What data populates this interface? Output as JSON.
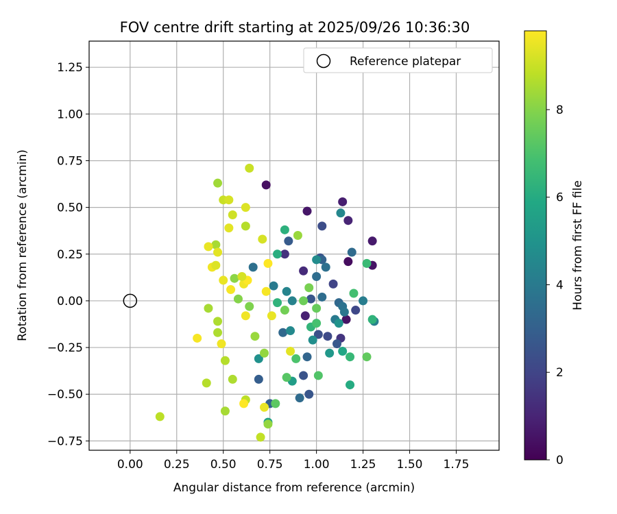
{
  "chart_data": {
    "type": "scatter",
    "title": "FOV centre drift starting at 2025/09/26 10:36:30",
    "xlabel": "Angular distance from reference (arcmin)",
    "ylabel": "Rotation from reference (arcmin)",
    "xlim": [
      -0.22,
      1.98
    ],
    "ylim": [
      -0.8,
      1.39
    ],
    "grid": true,
    "x_ticks": [
      "0.00",
      "0.25",
      "0.50",
      "0.75",
      "1.00",
      "1.25",
      "1.50",
      "1.75"
    ],
    "y_ticks": [
      "−0.75",
      "−0.50",
      "−0.25",
      "0.00",
      "0.25",
      "0.50",
      "0.75",
      "1.00",
      "1.25"
    ],
    "legend": {
      "position": "top-right",
      "entries": [
        "Reference platepar"
      ]
    },
    "reference": {
      "x": 0.0,
      "y": 0.0
    },
    "colorbar": {
      "label": "Hours from first FF file",
      "min": 0,
      "max": 9.8,
      "ticks": [
        "0",
        "2",
        "4",
        "6",
        "8"
      ],
      "colormap": "viridis"
    },
    "points": [
      {
        "x": 0.73,
        "y": 0.62,
        "h": 0.4
      },
      {
        "x": 0.95,
        "y": 0.48,
        "h": 0.6
      },
      {
        "x": 1.14,
        "y": 0.53,
        "h": 0.8
      },
      {
        "x": 1.17,
        "y": 0.43,
        "h": 1.0
      },
      {
        "x": 1.3,
        "y": 0.32,
        "h": 0.7
      },
      {
        "x": 1.3,
        "y": 0.19,
        "h": 0.5
      },
      {
        "x": 1.17,
        "y": 0.21,
        "h": 0.3
      },
      {
        "x": 1.16,
        "y": -0.1,
        "h": 0.5
      },
      {
        "x": 0.93,
        "y": 0.16,
        "h": 1.2
      },
      {
        "x": 0.94,
        "y": -0.08,
        "h": 0.9
      },
      {
        "x": 0.83,
        "y": 0.25,
        "h": 1.4
      },
      {
        "x": 1.13,
        "y": -0.2,
        "h": 1.5
      },
      {
        "x": 1.09,
        "y": 0.09,
        "h": 2.0
      },
      {
        "x": 1.03,
        "y": 0.4,
        "h": 2.3
      },
      {
        "x": 1.02,
        "y": 0.23,
        "h": 2.5
      },
      {
        "x": 0.97,
        "y": 0.01,
        "h": 2.6
      },
      {
        "x": 1.01,
        "y": -0.18,
        "h": 2.4
      },
      {
        "x": 1.06,
        "y": -0.19,
        "h": 2.2
      },
      {
        "x": 1.11,
        "y": -0.23,
        "h": 2.7
      },
      {
        "x": 0.85,
        "y": 0.32,
        "h": 2.8
      },
      {
        "x": 0.93,
        "y": -0.4,
        "h": 2.5
      },
      {
        "x": 0.96,
        "y": -0.5,
        "h": 2.6
      },
      {
        "x": 0.69,
        "y": -0.42,
        "h": 2.9
      },
      {
        "x": 0.75,
        "y": -0.55,
        "h": 3.0
      },
      {
        "x": 1.03,
        "y": 0.22,
        "h": 3.1
      },
      {
        "x": 1.21,
        "y": -0.05,
        "h": 2.1
      },
      {
        "x": 1.12,
        "y": -0.01,
        "h": 3.3
      },
      {
        "x": 1.19,
        "y": 0.26,
        "h": 3.4
      },
      {
        "x": 1.0,
        "y": 0.13,
        "h": 3.5
      },
      {
        "x": 1.03,
        "y": 0.02,
        "h": 3.5
      },
      {
        "x": 0.95,
        "y": -0.3,
        "h": 3.2
      },
      {
        "x": 0.91,
        "y": -0.52,
        "h": 3.4
      },
      {
        "x": 0.66,
        "y": 0.18,
        "h": 3.6
      },
      {
        "x": 1.05,
        "y": 0.18,
        "h": 3.6
      },
      {
        "x": 1.14,
        "y": -0.03,
        "h": 3.7
      },
      {
        "x": 1.15,
        "y": -0.06,
        "h": 3.8
      },
      {
        "x": 0.82,
        "y": -0.17,
        "h": 3.3
      },
      {
        "x": 1.1,
        "y": -0.1,
        "h": 4.0
      },
      {
        "x": 1.31,
        "y": -0.11,
        "h": 4.2
      },
      {
        "x": 1.25,
        "y": 0.0,
        "h": 4.1
      },
      {
        "x": 0.77,
        "y": 0.08,
        "h": 4.0
      },
      {
        "x": 0.87,
        "y": 0.0,
        "h": 4.3
      },
      {
        "x": 0.84,
        "y": 0.05,
        "h": 4.4
      },
      {
        "x": 1.13,
        "y": 0.47,
        "h": 4.5
      },
      {
        "x": 0.86,
        "y": -0.16,
        "h": 4.6
      },
      {
        "x": 0.98,
        "y": -0.21,
        "h": 4.8
      },
      {
        "x": 1.12,
        "y": -0.12,
        "h": 5.0
      },
      {
        "x": 1.0,
        "y": 0.22,
        "h": 4.7
      },
      {
        "x": 0.69,
        "y": -0.31,
        "h": 4.9
      },
      {
        "x": 1.07,
        "y": -0.28,
        "h": 5.2
      },
      {
        "x": 0.87,
        "y": -0.43,
        "h": 5.4
      },
      {
        "x": 0.74,
        "y": -0.65,
        "h": 5.6
      },
      {
        "x": 1.14,
        "y": -0.27,
        "h": 5.8
      },
      {
        "x": 1.18,
        "y": -0.45,
        "h": 6.0
      },
      {
        "x": 0.79,
        "y": 0.25,
        "h": 6.1
      },
      {
        "x": 0.83,
        "y": 0.38,
        "h": 6.2
      },
      {
        "x": 0.79,
        "y": -0.01,
        "h": 6.3
      },
      {
        "x": 0.97,
        "y": -0.14,
        "h": 6.4
      },
      {
        "x": 1.18,
        "y": -0.3,
        "h": 6.5
      },
      {
        "x": 1.27,
        "y": 0.2,
        "h": 6.6
      },
      {
        "x": 1.3,
        "y": -0.1,
        "h": 6.3
      },
      {
        "x": 1.2,
        "y": 0.04,
        "h": 6.8
      },
      {
        "x": 1.0,
        "y": -0.12,
        "h": 6.9
      },
      {
        "x": 0.89,
        "y": -0.31,
        "h": 7.0
      },
      {
        "x": 1.01,
        "y": -0.4,
        "h": 7.1
      },
      {
        "x": 0.84,
        "y": -0.41,
        "h": 7.2
      },
      {
        "x": 0.78,
        "y": -0.55,
        "h": 7.3
      },
      {
        "x": 1.27,
        "y": -0.3,
        "h": 7.4
      },
      {
        "x": 1.0,
        "y": -0.04,
        "h": 7.5
      },
      {
        "x": 0.93,
        "y": 0.0,
        "h": 7.6
      },
      {
        "x": 0.83,
        "y": -0.05,
        "h": 7.7
      },
      {
        "x": 0.96,
        "y": 0.07,
        "h": 7.8
      },
      {
        "x": 0.64,
        "y": -0.03,
        "h": 7.9
      },
      {
        "x": 0.58,
        "y": 0.01,
        "h": 8.0
      },
      {
        "x": 0.56,
        "y": 0.12,
        "h": 8.1
      },
      {
        "x": 0.74,
        "y": -0.66,
        "h": 8.2
      },
      {
        "x": 0.67,
        "y": -0.19,
        "h": 8.3
      },
      {
        "x": 0.72,
        "y": -0.28,
        "h": 8.2
      },
      {
        "x": 0.9,
        "y": 0.35,
        "h": 8.3
      },
      {
        "x": 0.47,
        "y": 0.63,
        "h": 8.4
      },
      {
        "x": 0.46,
        "y": 0.3,
        "h": 8.5
      },
      {
        "x": 0.42,
        "y": -0.04,
        "h": 8.5
      },
      {
        "x": 0.47,
        "y": -0.11,
        "h": 8.6
      },
      {
        "x": 0.47,
        "y": -0.17,
        "h": 8.6
      },
      {
        "x": 0.51,
        "y": -0.32,
        "h": 8.7
      },
      {
        "x": 0.41,
        "y": -0.44,
        "h": 8.7
      },
      {
        "x": 0.55,
        "y": -0.42,
        "h": 8.6
      },
      {
        "x": 0.62,
        "y": -0.53,
        "h": 8.8
      },
      {
        "x": 0.51,
        "y": -0.59,
        "h": 8.5
      },
      {
        "x": 0.7,
        "y": -0.73,
        "h": 8.9
      },
      {
        "x": 0.16,
        "y": -0.62,
        "h": 8.8
      },
      {
        "x": 0.62,
        "y": 0.4,
        "h": 8.7
      },
      {
        "x": 0.64,
        "y": 0.71,
        "h": 9.0
      },
      {
        "x": 0.5,
        "y": 0.54,
        "h": 9.0
      },
      {
        "x": 0.53,
        "y": 0.54,
        "h": 9.2
      },
      {
        "x": 0.55,
        "y": 0.46,
        "h": 9.1
      },
      {
        "x": 0.62,
        "y": 0.5,
        "h": 9.3
      },
      {
        "x": 0.53,
        "y": 0.39,
        "h": 9.4
      },
      {
        "x": 0.71,
        "y": 0.33,
        "h": 9.2
      },
      {
        "x": 0.42,
        "y": 0.29,
        "h": 9.5
      },
      {
        "x": 0.47,
        "y": 0.26,
        "h": 9.4
      },
      {
        "x": 0.44,
        "y": 0.18,
        "h": 9.6
      },
      {
        "x": 0.46,
        "y": 0.19,
        "h": 9.3
      },
      {
        "x": 0.5,
        "y": 0.11,
        "h": 9.5
      },
      {
        "x": 0.54,
        "y": 0.06,
        "h": 9.7
      },
      {
        "x": 0.61,
        "y": 0.09,
        "h": 9.6
      },
      {
        "x": 0.63,
        "y": 0.11,
        "h": 9.8
      },
      {
        "x": 0.73,
        "y": 0.05,
        "h": 9.7
      },
      {
        "x": 0.74,
        "y": 0.2,
        "h": 9.8
      },
      {
        "x": 0.62,
        "y": -0.08,
        "h": 9.6
      },
      {
        "x": 0.76,
        "y": -0.08,
        "h": 9.5
      },
      {
        "x": 0.36,
        "y": -0.2,
        "h": 9.7
      },
      {
        "x": 0.49,
        "y": -0.23,
        "h": 9.6
      },
      {
        "x": 0.61,
        "y": -0.55,
        "h": 9.8
      },
      {
        "x": 0.86,
        "y": -0.27,
        "h": 9.4
      },
      {
        "x": 0.72,
        "y": -0.57,
        "h": 9.5
      },
      {
        "x": 0.6,
        "y": 0.13,
        "h": 9.2
      }
    ]
  }
}
